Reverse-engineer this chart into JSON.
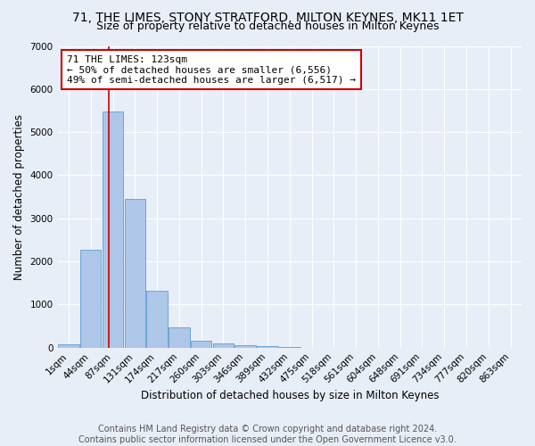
{
  "title": "71, THE LIMES, STONY STRATFORD, MILTON KEYNES, MK11 1ET",
  "subtitle": "Size of property relative to detached houses in Milton Keynes",
  "xlabel": "Distribution of detached houses by size in Milton Keynes",
  "ylabel": "Number of detached properties",
  "footer_line1": "Contains HM Land Registry data © Crown copyright and database right 2024.",
  "footer_line2": "Contains public sector information licensed under the Open Government Licence v3.0.",
  "bar_labels": [
    "1sqm",
    "44sqm",
    "87sqm",
    "131sqm",
    "174sqm",
    "217sqm",
    "260sqm",
    "303sqm",
    "346sqm",
    "389sqm",
    "432sqm",
    "475sqm",
    "518sqm",
    "561sqm",
    "604sqm",
    "648sqm",
    "691sqm",
    "734sqm",
    "777sqm",
    "820sqm",
    "863sqm"
  ],
  "bar_values": [
    80,
    2270,
    5480,
    3450,
    1310,
    460,
    155,
    90,
    55,
    35,
    20,
    0,
    0,
    0,
    0,
    0,
    0,
    0,
    0,
    0,
    0
  ],
  "bar_color": "#aec6e8",
  "bar_edge_color": "#5a9fd4",
  "annotation_text": "71 THE LIMES: 123sqm\n← 50% of detached houses are smaller (6,556)\n49% of semi-detached houses are larger (6,517) →",
  "vline_x": 1.83,
  "vline_color": "#cc0000",
  "annotation_box_color": "#ffffff",
  "annotation_box_edge": "#cc0000",
  "ylim": [
    0,
    7000
  ],
  "background_color": "#e8eef7",
  "plot_bg_color": "#e8eef7",
  "grid_color": "#ffffff",
  "title_fontsize": 10,
  "subtitle_fontsize": 9,
  "axis_label_fontsize": 8.5,
  "tick_fontsize": 7.5,
  "annotation_fontsize": 8,
  "footer_fontsize": 7
}
